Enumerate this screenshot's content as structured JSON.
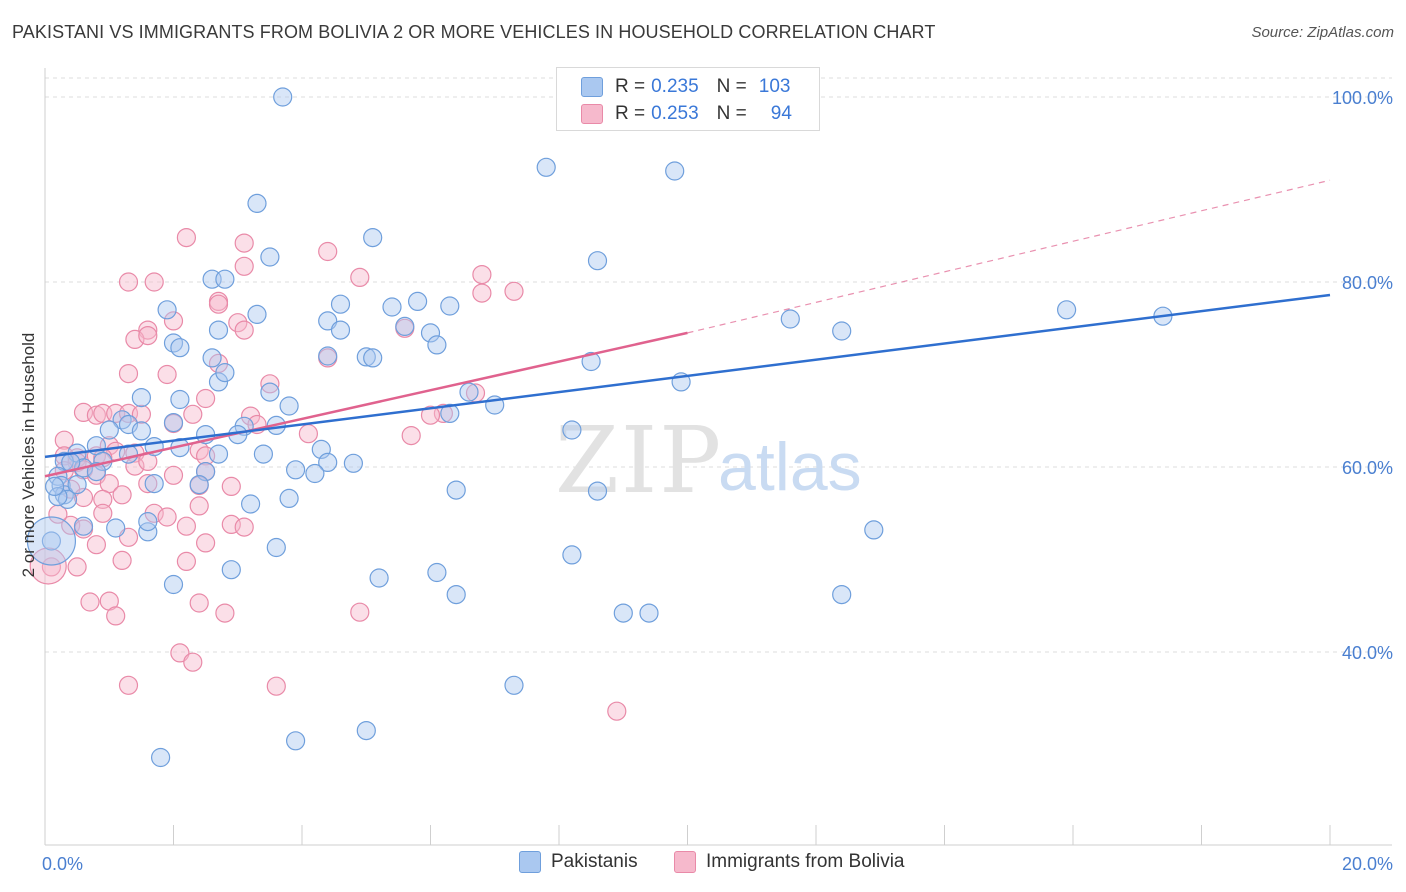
{
  "title": "PAKISTANI VS IMMIGRANTS FROM BOLIVIA 2 OR MORE VEHICLES IN HOUSEHOLD CORRELATION CHART",
  "source": "Source: ZipAtlas.com",
  "watermark": {
    "zip": "ZIP",
    "atlas": "atlas"
  },
  "colors": {
    "blue_fill": "#aac8f0",
    "blue_stroke": "#6f9fdc",
    "blue_line": "#2f6fcf",
    "pink_fill": "#f6b9cc",
    "pink_stroke": "#e98aa8",
    "pink_line": "#e0628e",
    "grid": "#dcdcdc",
    "axis_text": "#4a7fd0"
  },
  "legend": {
    "rows": [
      {
        "r_label": "R =",
        "r_value": "0.235",
        "n_label": "N =",
        "n_value": "103"
      },
      {
        "r_label": "R =",
        "r_value": "0.253",
        "n_label": "N =",
        "n_value": "94"
      }
    ]
  },
  "bottom_legend": [
    "Pakistanis",
    "Immigrants from Bolivia"
  ],
  "chart_data": {
    "type": "scatter",
    "title": "PAKISTANI VS IMMIGRANTS FROM BOLIVIA 2 OR MORE VEHICLES IN HOUSEHOLD CORRELATION CHART",
    "xlabel": "",
    "ylabel": "2 or more Vehicles in Household",
    "xlim": [
      0,
      20
    ],
    "ylim": [
      20,
      102
    ],
    "x_tick_labels": [
      "0.0%",
      "20.0%"
    ],
    "y_ticks": [
      40,
      60,
      80,
      100
    ],
    "y_tick_labels": [
      "40.0%",
      "60.0%",
      "80.0%",
      "100.0%"
    ],
    "grid": true,
    "legend_position": "top-center",
    "series": [
      {
        "name": "Pakistanis",
        "color": "#6f9fdc",
        "trend": {
          "x": [
            0,
            20
          ],
          "y": [
            61.1,
            78.6
          ]
        },
        "points": [
          [
            3.7,
            100
          ],
          [
            3.3,
            88.5
          ],
          [
            2.6,
            80.3
          ],
          [
            2.8,
            80.3
          ],
          [
            3.5,
            82.7
          ],
          [
            5.1,
            84.8
          ],
          [
            7.8,
            92.4
          ],
          [
            9.8,
            92.0
          ],
          [
            8.6,
            82.3
          ],
          [
            15.9,
            77.0
          ],
          [
            17.4,
            76.3
          ],
          [
            11.6,
            76.0
          ],
          [
            12.4,
            74.7
          ],
          [
            2.0,
            73.4
          ],
          [
            1.9,
            77.0
          ],
          [
            2.7,
            74.8
          ],
          [
            3.3,
            76.5
          ],
          [
            4.4,
            75.8
          ],
          [
            4.6,
            74.8
          ],
          [
            4.6,
            77.6
          ],
          [
            5.4,
            77.3
          ],
          [
            5.8,
            77.9
          ],
          [
            6.3,
            77.4
          ],
          [
            5.6,
            75.2
          ],
          [
            6.0,
            74.5
          ],
          [
            6.1,
            73.2
          ],
          [
            4.4,
            72.0
          ],
          [
            5.0,
            71.9
          ],
          [
            2.1,
            72.9
          ],
          [
            2.6,
            71.8
          ],
          [
            8.5,
            71.4
          ],
          [
            9.9,
            69.2
          ],
          [
            6.6,
            68.1
          ],
          [
            7.0,
            66.7
          ],
          [
            3.8,
            66.6
          ],
          [
            5.1,
            71.8
          ],
          [
            1.5,
            67.5
          ],
          [
            2.1,
            67.3
          ],
          [
            2.7,
            69.2
          ],
          [
            2.8,
            70.2
          ],
          [
            3.5,
            68.1
          ],
          [
            1.2,
            65.1
          ],
          [
            1.3,
            64.6
          ],
          [
            1.5,
            63.9
          ],
          [
            2.0,
            64.8
          ],
          [
            2.5,
            63.5
          ],
          [
            3.1,
            64.4
          ],
          [
            3.6,
            64.5
          ],
          [
            1.7,
            62.2
          ],
          [
            2.1,
            62.1
          ],
          [
            1.3,
            61.4
          ],
          [
            0.8,
            62.3
          ],
          [
            0.5,
            61.5
          ],
          [
            0.3,
            60.6
          ],
          [
            0.9,
            60.6
          ],
          [
            0.6,
            59.9
          ],
          [
            2.7,
            61.4
          ],
          [
            3.4,
            61.4
          ],
          [
            4.3,
            61.9
          ],
          [
            4.4,
            60.5
          ],
          [
            2.5,
            59.5
          ],
          [
            3.9,
            59.7
          ],
          [
            4.2,
            59.3
          ],
          [
            6.3,
            65.8
          ],
          [
            8.2,
            64.0
          ],
          [
            0.2,
            59.0
          ],
          [
            0.25,
            58.0
          ],
          [
            0.3,
            57.0
          ],
          [
            0.35,
            56.5
          ],
          [
            1.7,
            58.2
          ],
          [
            2.4,
            58.1
          ],
          [
            0.5,
            58.1
          ],
          [
            0.6,
            53.6
          ],
          [
            1.1,
            53.4
          ],
          [
            1.6,
            53.0
          ],
          [
            1.6,
            54.1
          ],
          [
            3.2,
            56.0
          ],
          [
            3.8,
            56.6
          ],
          [
            6.4,
            57.5
          ],
          [
            8.6,
            57.4
          ],
          [
            12.9,
            53.2
          ],
          [
            3.6,
            51.3
          ],
          [
            2.9,
            48.9
          ],
          [
            2.0,
            47.3
          ],
          [
            6.1,
            48.6
          ],
          [
            8.2,
            50.5
          ],
          [
            6.4,
            46.2
          ],
          [
            9.4,
            44.2
          ],
          [
            12.4,
            46.2
          ],
          [
            7.3,
            36.4
          ],
          [
            3.9,
            30.4
          ],
          [
            5.0,
            31.5
          ],
          [
            1.8,
            28.6
          ],
          [
            0.1,
            52.0
          ],
          [
            0.2,
            56.8
          ],
          [
            0.15,
            57.9
          ],
          [
            0.4,
            60.5
          ],
          [
            0.8,
            59.5
          ],
          [
            1.0,
            64.0
          ],
          [
            3.0,
            63.5
          ],
          [
            4.8,
            60.4
          ],
          [
            9.0,
            44.2
          ],
          [
            5.2,
            48.0
          ]
        ]
      },
      {
        "name": "Immigrants from Bolivia",
        "color": "#e98aa8",
        "trend": {
          "x": [
            0,
            10
          ],
          "y": [
            59.0,
            74.5
          ]
        },
        "trend_extended": {
          "x": [
            10,
            20
          ],
          "y": [
            74.5,
            91.0
          ]
        },
        "points": [
          [
            2.2,
            84.8
          ],
          [
            3.1,
            84.2
          ],
          [
            4.4,
            83.3
          ],
          [
            3.1,
            81.7
          ],
          [
            1.3,
            80.0
          ],
          [
            1.7,
            80.0
          ],
          [
            4.9,
            80.5
          ],
          [
            6.8,
            80.8
          ],
          [
            7.3,
            79.0
          ],
          [
            6.8,
            78.8
          ],
          [
            2.7,
            77.9
          ],
          [
            2.7,
            77.6
          ],
          [
            1.6,
            74.8
          ],
          [
            2.0,
            75.8
          ],
          [
            3.0,
            75.6
          ],
          [
            3.1,
            74.8
          ],
          [
            5.6,
            75.0
          ],
          [
            1.4,
            73.8
          ],
          [
            1.6,
            74.2
          ],
          [
            4.4,
            71.8
          ],
          [
            2.7,
            71.2
          ],
          [
            1.3,
            70.1
          ],
          [
            1.9,
            70.0
          ],
          [
            3.5,
            69.0
          ],
          [
            6.7,
            68.0
          ],
          [
            2.5,
            67.4
          ],
          [
            0.6,
            65.9
          ],
          [
            0.8,
            65.6
          ],
          [
            0.9,
            65.8
          ],
          [
            1.1,
            65.8
          ],
          [
            1.3,
            65.8
          ],
          [
            1.5,
            65.7
          ],
          [
            2.3,
            65.7
          ],
          [
            3.2,
            65.5
          ],
          [
            3.3,
            64.6
          ],
          [
            2.0,
            64.7
          ],
          [
            6.2,
            65.8
          ],
          [
            6.0,
            65.6
          ],
          [
            4.1,
            63.6
          ],
          [
            5.7,
            63.4
          ],
          [
            0.3,
            62.9
          ],
          [
            0.5,
            61.0
          ],
          [
            0.8,
            61.2
          ],
          [
            1.0,
            62.3
          ],
          [
            1.1,
            61.7
          ],
          [
            1.4,
            61.5
          ],
          [
            2.4,
            61.8
          ],
          [
            2.5,
            61.2
          ],
          [
            0.9,
            61.0
          ],
          [
            0.3,
            61.2
          ],
          [
            0.5,
            60.5
          ],
          [
            1.4,
            60.1
          ],
          [
            1.6,
            60.6
          ],
          [
            2.0,
            59.1
          ],
          [
            2.5,
            59.5
          ],
          [
            0.6,
            59.7
          ],
          [
            0.8,
            59.1
          ],
          [
            0.3,
            59.6
          ],
          [
            1.0,
            58.2
          ],
          [
            1.6,
            58.2
          ],
          [
            2.4,
            58.0
          ],
          [
            2.9,
            57.9
          ],
          [
            0.4,
            57.6
          ],
          [
            0.6,
            56.7
          ],
          [
            0.9,
            56.5
          ],
          [
            1.2,
            57.0
          ],
          [
            2.4,
            55.8
          ],
          [
            0.9,
            55.0
          ],
          [
            1.7,
            55.0
          ],
          [
            1.9,
            54.6
          ],
          [
            2.2,
            53.6
          ],
          [
            2.9,
            53.8
          ],
          [
            3.1,
            53.5
          ],
          [
            0.4,
            53.7
          ],
          [
            0.6,
            53.3
          ],
          [
            1.3,
            52.4
          ],
          [
            0.8,
            51.6
          ],
          [
            2.5,
            51.8
          ],
          [
            0.5,
            49.2
          ],
          [
            1.2,
            49.9
          ],
          [
            2.2,
            49.8
          ],
          [
            0.1,
            49.2
          ],
          [
            0.7,
            45.4
          ],
          [
            1.0,
            45.5
          ],
          [
            2.4,
            45.3
          ],
          [
            1.1,
            43.9
          ],
          [
            2.8,
            44.2
          ],
          [
            4.9,
            44.3
          ],
          [
            2.1,
            39.9
          ],
          [
            2.3,
            38.9
          ],
          [
            1.3,
            36.4
          ],
          [
            3.6,
            36.3
          ],
          [
            8.9,
            33.6
          ],
          [
            0.2,
            54.9
          ]
        ]
      }
    ]
  }
}
